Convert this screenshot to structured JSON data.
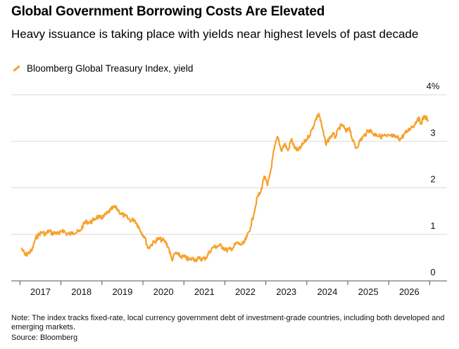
{
  "header": {
    "title": "Global Government Borrowing Costs Are Elevated",
    "subtitle": "Heavy issuance is taking place with yields near highest levels of past decade"
  },
  "legend": {
    "label": "Bloomberg Global Treasury Index, yield",
    "color": "#f7a12b"
  },
  "footer": {
    "note": "Note: The index tracks fixed-rate, local currency government debt of investment-grade countries, including both developed and emerging markets.",
    "source": "Source: Bloomberg"
  },
  "chart_data": {
    "type": "line",
    "title": "Global Government Borrowing Costs Are Elevated",
    "subtitle": "Heavy issuance is taking place with yields near highest levels of past decade",
    "series": [
      {
        "name": "Bloomberg Global Treasury Index, yield",
        "color": "#f7a12b",
        "points": [
          [
            "2016-07",
            0.7
          ],
          [
            "2016-08",
            0.55
          ],
          [
            "2016-09",
            0.6
          ],
          [
            "2016-10",
            0.65
          ],
          [
            "2016-11",
            0.9
          ],
          [
            "2016-12",
            1.0
          ],
          [
            "2017-01",
            1.05
          ],
          [
            "2017-02",
            1.0
          ],
          [
            "2017-03",
            1.08
          ],
          [
            "2017-04",
            1.02
          ],
          [
            "2017-05",
            1.04
          ],
          [
            "2017-06",
            1.0
          ],
          [
            "2017-07",
            1.1
          ],
          [
            "2017-08",
            1.02
          ],
          [
            "2017-09",
            1.0
          ],
          [
            "2017-10",
            1.05
          ],
          [
            "2017-11",
            1.04
          ],
          [
            "2017-12",
            1.06
          ],
          [
            "2018-01",
            1.2
          ],
          [
            "2018-02",
            1.28
          ],
          [
            "2018-03",
            1.25
          ],
          [
            "2018-04",
            1.3
          ],
          [
            "2018-05",
            1.38
          ],
          [
            "2018-06",
            1.35
          ],
          [
            "2018-07",
            1.38
          ],
          [
            "2018-08",
            1.45
          ],
          [
            "2018-09",
            1.52
          ],
          [
            "2018-10",
            1.58
          ],
          [
            "2018-11",
            1.55
          ],
          [
            "2018-12",
            1.45
          ],
          [
            "2019-01",
            1.4
          ],
          [
            "2019-02",
            1.35
          ],
          [
            "2019-03",
            1.3
          ],
          [
            "2019-04",
            1.32
          ],
          [
            "2019-05",
            1.2
          ],
          [
            "2019-06",
            1.05
          ],
          [
            "2019-07",
            0.95
          ],
          [
            "2019-08",
            0.7
          ],
          [
            "2019-09",
            0.78
          ],
          [
            "2019-10",
            0.85
          ],
          [
            "2019-11",
            0.9
          ],
          [
            "2019-12",
            0.88
          ],
          [
            "2020-01",
            0.85
          ],
          [
            "2020-02",
            0.72
          ],
          [
            "2020-03",
            0.45
          ],
          [
            "2020-04",
            0.6
          ],
          [
            "2020-05",
            0.55
          ],
          [
            "2020-06",
            0.52
          ],
          [
            "2020-07",
            0.5
          ],
          [
            "2020-08",
            0.45
          ],
          [
            "2020-09",
            0.48
          ],
          [
            "2020-10",
            0.46
          ],
          [
            "2020-11",
            0.48
          ],
          [
            "2020-12",
            0.47
          ],
          [
            "2021-01",
            0.5
          ],
          [
            "2021-02",
            0.62
          ],
          [
            "2021-03",
            0.72
          ],
          [
            "2021-04",
            0.74
          ],
          [
            "2021-05",
            0.76
          ],
          [
            "2021-06",
            0.72
          ],
          [
            "2021-07",
            0.66
          ],
          [
            "2021-08",
            0.68
          ],
          [
            "2021-09",
            0.72
          ],
          [
            "2021-10",
            0.82
          ],
          [
            "2021-11",
            0.78
          ],
          [
            "2021-12",
            0.8
          ],
          [
            "2022-01",
            0.95
          ],
          [
            "2022-02",
            1.15
          ],
          [
            "2022-03",
            1.45
          ],
          [
            "2022-04",
            1.8
          ],
          [
            "2022-05",
            1.9
          ],
          [
            "2022-06",
            2.25
          ],
          [
            "2022-07",
            2.05
          ],
          [
            "2022-08",
            2.4
          ],
          [
            "2022-09",
            2.85
          ],
          [
            "2022-10",
            3.1
          ],
          [
            "2022-11",
            2.8
          ],
          [
            "2022-12",
            2.95
          ],
          [
            "2023-01",
            2.8
          ],
          [
            "2023-02",
            3.05
          ],
          [
            "2023-03",
            2.85
          ],
          [
            "2023-04",
            2.8
          ],
          [
            "2023-05",
            2.9
          ],
          [
            "2023-06",
            3.0
          ],
          [
            "2023-07",
            3.1
          ],
          [
            "2023-08",
            3.25
          ],
          [
            "2023-09",
            3.45
          ],
          [
            "2023-10",
            3.6
          ],
          [
            "2023-11",
            3.3
          ],
          [
            "2023-12",
            2.95
          ],
          [
            "2024-01",
            3.05
          ],
          [
            "2024-02",
            3.15
          ],
          [
            "2024-03",
            3.1
          ],
          [
            "2024-04",
            3.3
          ],
          [
            "2024-05",
            3.35
          ],
          [
            "2024-06",
            3.2
          ],
          [
            "2024-07",
            3.3
          ],
          [
            "2024-08",
            3.0
          ],
          [
            "2024-09",
            2.85
          ],
          [
            "2024-10",
            3.0
          ],
          [
            "2024-11",
            3.1
          ],
          [
            "2024-12",
            3.18
          ],
          [
            "2025-01",
            3.25
          ],
          [
            "2025-02",
            3.15
          ],
          [
            "2025-03",
            3.15
          ],
          [
            "2025-04",
            3.1
          ],
          [
            "2025-05",
            3.12
          ],
          [
            "2025-06",
            3.1
          ],
          [
            "2025-07",
            3.12
          ],
          [
            "2025-08",
            3.1
          ],
          [
            "2025-09",
            3.08
          ],
          [
            "2025-10",
            3.05
          ],
          [
            "2025-11",
            3.15
          ],
          [
            "2025-12",
            3.22
          ],
          [
            "2026-01",
            3.3
          ],
          [
            "2026-02",
            3.35
          ],
          [
            "2026-03",
            3.5
          ],
          [
            "2026-04",
            3.4
          ],
          [
            "2026-05",
            3.55
          ],
          [
            "2026-06",
            3.45
          ]
        ]
      }
    ],
    "x_ticks": [
      "2017",
      "2018",
      "2019",
      "2020",
      "2021",
      "2022",
      "2023",
      "2024",
      "2025",
      "2026"
    ],
    "y_ticks": [
      0,
      1,
      2,
      3,
      4
    ],
    "y_tick_labels": [
      "0",
      "1",
      "2",
      "3",
      "4%"
    ],
    "ylim": [
      0,
      4
    ],
    "xlim": [
      "2016-06",
      "2026-07"
    ],
    "grid": true,
    "legend_position": "top-left",
    "y_axis_position": "right"
  }
}
